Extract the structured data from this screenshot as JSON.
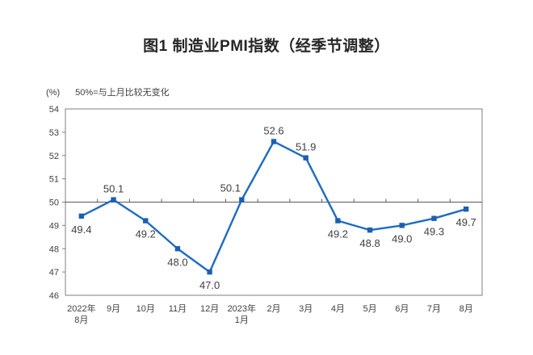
{
  "title": "图1 制造业PMI指数（经季节调整）",
  "unit_label": "(%)",
  "axis_note": "50%=与上月比较无变化",
  "chart_data": {
    "type": "line",
    "title": "图1 制造业PMI指数（经季节调整）",
    "series_name": "制造业PMI指数",
    "categories": [
      "2022年|8月",
      "9月",
      "10月",
      "11月",
      "12月",
      "2023年|1月",
      "2月",
      "3月",
      "4月",
      "5月",
      "6月",
      "7月",
      "8月"
    ],
    "values": [
      49.4,
      50.1,
      49.2,
      48.0,
      47.0,
      50.1,
      52.6,
      51.9,
      49.2,
      48.8,
      49.0,
      49.3,
      49.7
    ],
    "point_labels": [
      "49.4",
      "50.1",
      "49.2",
      "48.0",
      "47.0",
      "50.1",
      "52.6",
      "51.9",
      "49.2",
      "48.8",
      "49.0",
      "49.3",
      "49.7"
    ],
    "label_positions": [
      "below",
      "above",
      "below",
      "below",
      "below",
      "above-left",
      "above",
      "above",
      "below",
      "below",
      "below",
      "below",
      "below"
    ],
    "ylabel": "(%)",
    "ylim": [
      46,
      54
    ],
    "yticks": [
      46,
      47,
      48,
      49,
      50,
      51,
      52,
      53,
      54
    ],
    "reference_line": 50,
    "grid": false,
    "legend": "none",
    "colors": {
      "line": "#1F6BC4",
      "marker": "#1D5FB0",
      "axis": "#7F7F7F",
      "reference": "#595959",
      "text": "#3F3F3F"
    }
  }
}
